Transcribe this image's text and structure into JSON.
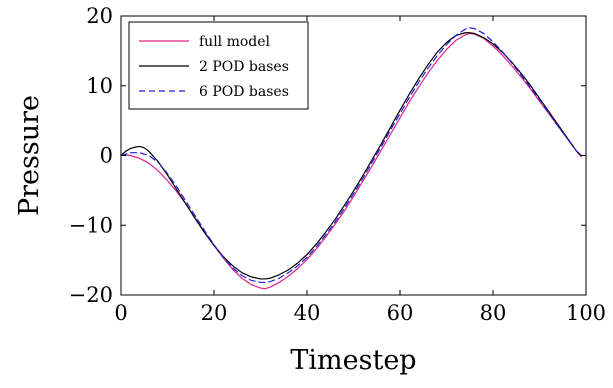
{
  "chart_data": {
    "type": "line",
    "title": "",
    "xlabel": "Timestep",
    "ylabel": "Pressure",
    "xlim": [
      0,
      100
    ],
    "ylim": [
      -20,
      20
    ],
    "xticks": [
      0,
      20,
      40,
      60,
      80,
      100
    ],
    "yticks": [
      -20,
      -10,
      0,
      10,
      20
    ],
    "xtick_labels": [
      "0",
      "20",
      "40",
      "60",
      "80",
      "100"
    ],
    "ytick_labels": [
      "−20",
      "−10",
      "0",
      "10",
      "20"
    ],
    "grid": false,
    "legend_position": "top-left",
    "series": [
      {
        "name": "full model",
        "color": "#e0218a",
        "style": "solid",
        "x": [
          0,
          2,
          4,
          6,
          8,
          10,
          12,
          14,
          16,
          18,
          20,
          22,
          24,
          26,
          28,
          30,
          31,
          32,
          34,
          36,
          38,
          40,
          42,
          44,
          46,
          48,
          50,
          52,
          54,
          56,
          58,
          60,
          62,
          64,
          66,
          68,
          70,
          72,
          74,
          75,
          76,
          78,
          80,
          82,
          84,
          86,
          88,
          90,
          92,
          94,
          96,
          98,
          99
        ],
        "y": [
          0.1,
          0.0,
          -0.4,
          -1.1,
          -2.2,
          -3.6,
          -5.2,
          -7.0,
          -9.0,
          -11.0,
          -12.9,
          -14.7,
          -16.3,
          -17.6,
          -18.5,
          -19.0,
          -19.1,
          -18.9,
          -18.2,
          -17.3,
          -16.2,
          -14.9,
          -13.4,
          -11.7,
          -9.9,
          -8.0,
          -5.9,
          -3.7,
          -1.5,
          0.8,
          3.1,
          5.4,
          7.7,
          9.8,
          11.8,
          13.6,
          15.2,
          16.5,
          17.3,
          17.5,
          17.4,
          16.8,
          15.7,
          14.4,
          12.9,
          11.3,
          9.6,
          7.8,
          6.0,
          4.2,
          2.4,
          0.6,
          -0.2
        ]
      },
      {
        "name": "2 POD bases",
        "color": "#000000",
        "style": "solid",
        "x": [
          0,
          1,
          2,
          3,
          4,
          5,
          6,
          8,
          10,
          12,
          14,
          16,
          18,
          20,
          22,
          24,
          26,
          28,
          30,
          31,
          32,
          34,
          36,
          38,
          40,
          42,
          44,
          46,
          48,
          50,
          52,
          54,
          56,
          58,
          60,
          62,
          64,
          66,
          68,
          70,
          72,
          74,
          75,
          76,
          78,
          80,
          82,
          84,
          86,
          88,
          90,
          92,
          94,
          96,
          98,
          99
        ],
        "y": [
          0.0,
          0.6,
          1.0,
          1.2,
          1.3,
          1.1,
          0.6,
          -0.9,
          -2.8,
          -4.9,
          -7.0,
          -9.1,
          -11.1,
          -12.9,
          -14.5,
          -15.8,
          -16.8,
          -17.4,
          -17.7,
          -17.7,
          -17.6,
          -17.1,
          -16.4,
          -15.4,
          -14.2,
          -12.7,
          -11.0,
          -9.2,
          -7.2,
          -5.1,
          -2.9,
          -0.6,
          1.7,
          4.1,
          6.5,
          8.8,
          11.0,
          13.0,
          14.8,
          16.2,
          17.2,
          17.6,
          17.6,
          17.5,
          16.9,
          16.0,
          14.8,
          13.4,
          11.8,
          10.1,
          8.2,
          6.3,
          4.4,
          2.5,
          0.6,
          0.0
        ]
      },
      {
        "name": "6 POD bases",
        "color": "#1f1fd6",
        "style": "dashed",
        "x": [
          0,
          2,
          4,
          6,
          8,
          10,
          12,
          14,
          16,
          18,
          20,
          22,
          24,
          26,
          28,
          30,
          31,
          32,
          34,
          36,
          38,
          40,
          42,
          44,
          46,
          48,
          50,
          52,
          54,
          56,
          58,
          60,
          62,
          64,
          66,
          68,
          70,
          72,
          74,
          75,
          76,
          78,
          80,
          82,
          84,
          86,
          88,
          90,
          92,
          94,
          96,
          98,
          99
        ],
        "y": [
          0.0,
          0.4,
          0.4,
          0.0,
          -1.0,
          -2.6,
          -4.5,
          -6.6,
          -8.7,
          -10.8,
          -12.8,
          -14.6,
          -16.1,
          -17.2,
          -17.9,
          -18.2,
          -18.2,
          -18.1,
          -17.6,
          -16.8,
          -15.8,
          -14.6,
          -13.1,
          -11.4,
          -9.6,
          -7.6,
          -5.5,
          -3.3,
          -1.0,
          1.3,
          3.7,
          6.0,
          8.3,
          10.5,
          12.5,
          14.3,
          15.9,
          17.2,
          18.1,
          18.3,
          18.2,
          17.5,
          16.3,
          14.9,
          13.3,
          11.6,
          9.8,
          8.0,
          6.1,
          4.2,
          2.4,
          0.6,
          0.0
        ]
      }
    ]
  }
}
